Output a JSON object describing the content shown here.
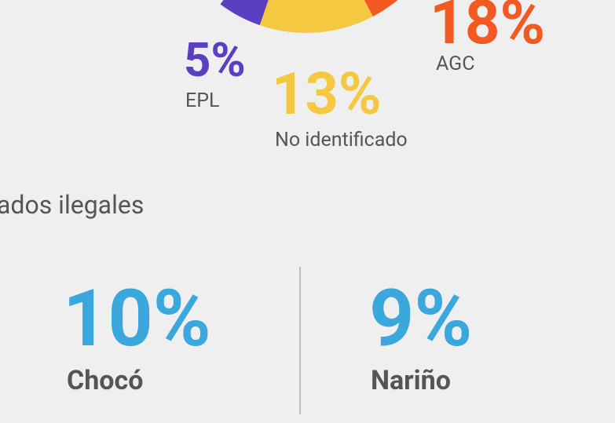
{
  "chart_data": {
    "type": "pie",
    "categories": [
      "EPL",
      "No identificado",
      "AGC"
    ],
    "values": [
      5,
      13,
      18
    ],
    "value_labels": [
      "5%",
      "13%",
      "18%"
    ],
    "colors": [
      "#5a3fc0",
      "#f5c842",
      "#f25a22"
    ]
  },
  "section": {
    "title": "ados ilegales",
    "stats": [
      {
        "value": "10%",
        "label": "Chocó"
      },
      {
        "value": "9%",
        "label": "Nariño"
      }
    ]
  }
}
